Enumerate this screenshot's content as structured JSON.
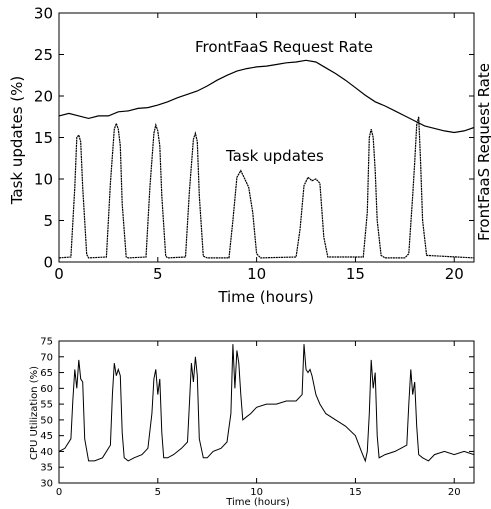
{
  "chart_data": [
    {
      "type": "line",
      "title": "",
      "xlabel": "Time (hours)",
      "ylabel": "Task updates (%)",
      "ylabel_right": "FrontFaaS Request Rate",
      "xlim": [
        0,
        21
      ],
      "ylim": [
        0,
        30
      ],
      "xticks": [
        0,
        5,
        10,
        15,
        20
      ],
      "yticks": [
        0,
        5,
        10,
        15,
        20,
        25,
        30
      ],
      "grid": false,
      "annotations": [
        "FrontFaaS Request Rate",
        "Task updates"
      ],
      "series": [
        {
          "key": "request_rate",
          "x": [
            0,
            0.5,
            1,
            1.5,
            2,
            2.5,
            3,
            3.5,
            4,
            4.5,
            5,
            5.5,
            6,
            6.5,
            7,
            7.5,
            8,
            8.5,
            9,
            9.5,
            10,
            10.5,
            11,
            11.5,
            12,
            12.5,
            13,
            13.5,
            14,
            14.5,
            15,
            15.5,
            16,
            16.5,
            17,
            17.5,
            18,
            18.5,
            19,
            19.5,
            20,
            20.5,
            21
          ],
          "values": [
            17.6,
            17.9,
            17.6,
            17.3,
            17.6,
            17.6,
            18.1,
            18.2,
            18.5,
            18.6,
            18.9,
            19.3,
            19.8,
            20.2,
            20.6,
            21.2,
            21.9,
            22.5,
            23.0,
            23.3,
            23.5,
            23.6,
            23.8,
            24.0,
            24.1,
            24.3,
            24.1,
            23.4,
            22.7,
            21.9,
            21.0,
            20.1,
            19.3,
            18.8,
            18.2,
            17.6,
            17.0,
            16.4,
            16.1,
            15.8,
            15.6,
            15.8,
            16.2
          ]
        },
        {
          "key": "task_updates",
          "x": [
            0,
            0.6,
            0.8,
            0.9,
            1.0,
            1.1,
            1.2,
            1.4,
            1.5,
            2.4,
            2.6,
            2.8,
            2.9,
            3.0,
            3.1,
            3.2,
            3.4,
            3.5,
            4.4,
            4.6,
            4.8,
            4.9,
            5.0,
            5.1,
            5.2,
            5.4,
            5.5,
            6.4,
            6.6,
            6.8,
            6.9,
            7.0,
            7.1,
            7.3,
            7.5,
            8.6,
            8.8,
            9.0,
            9.2,
            9.4,
            9.6,
            9.8,
            10.0,
            10.2,
            12.0,
            12.2,
            12.4,
            12.6,
            12.8,
            13.0,
            13.2,
            13.4,
            13.6,
            15.4,
            15.6,
            15.7,
            15.8,
            15.9,
            16.0,
            16.1,
            16.3,
            16.5,
            17.5,
            17.7,
            17.9,
            18.0,
            18.1,
            18.2,
            18.3,
            18.4,
            18.6,
            21.0
          ],
          "values": [
            0.5,
            0.6,
            9.0,
            15.0,
            15.3,
            14.5,
            9.0,
            0.9,
            0.5,
            0.6,
            9.5,
            16.0,
            16.7,
            16.0,
            14.0,
            7.0,
            0.6,
            0.5,
            0.6,
            9.0,
            15.5,
            16.5,
            15.8,
            14.0,
            8.0,
            0.7,
            0.5,
            0.6,
            8.5,
            14.8,
            15.5,
            14.5,
            8.0,
            0.7,
            0.5,
            0.5,
            5.0,
            10.2,
            11.0,
            10.0,
            9.0,
            6.0,
            1.0,
            0.5,
            0.6,
            4.0,
            9.2,
            10.2,
            9.8,
            10.0,
            9.5,
            3.0,
            0.6,
            0.6,
            6.0,
            15.0,
            16.0,
            15.0,
            11.0,
            5.0,
            0.8,
            0.5,
            0.5,
            1.0,
            8.0,
            12.0,
            16.5,
            17.5,
            12.0,
            5.0,
            0.8,
            0.5
          ]
        }
      ]
    },
    {
      "type": "line",
      "title": "",
      "xlabel": "Time (hours)",
      "ylabel": "CPU Utilization (%)",
      "xlim": [
        0,
        21
      ],
      "ylim": [
        30,
        75
      ],
      "xticks": [
        0,
        5,
        10,
        15,
        20
      ],
      "yticks": [
        30,
        35,
        40,
        45,
        50,
        55,
        60,
        65,
        70,
        75
      ],
      "grid": false,
      "series": [
        {
          "key": "cpu",
          "x": [
            0,
            0.3,
            0.6,
            0.7,
            0.8,
            0.9,
            1.0,
            1.1,
            1.2,
            1.3,
            1.5,
            1.8,
            2.2,
            2.6,
            2.7,
            2.8,
            2.9,
            3.0,
            3.1,
            3.2,
            3.3,
            3.5,
            3.8,
            4.2,
            4.5,
            4.7,
            4.8,
            4.9,
            5.0,
            5.1,
            5.2,
            5.3,
            5.5,
            5.8,
            6.2,
            6.5,
            6.6,
            6.7,
            6.8,
            6.9,
            7.0,
            7.1,
            7.3,
            7.5,
            7.8,
            8.2,
            8.5,
            8.7,
            8.8,
            8.9,
            9.0,
            9.1,
            9.2,
            9.3,
            9.5,
            9.7,
            10.0,
            10.5,
            11.0,
            11.5,
            12.0,
            12.3,
            12.4,
            12.5,
            12.6,
            12.7,
            12.8,
            13.0,
            13.2,
            13.5,
            14.0,
            14.5,
            15.0,
            15.3,
            15.5,
            15.6,
            15.7,
            15.8,
            15.9,
            16.0,
            16.1,
            16.2,
            16.5,
            17.0,
            17.3,
            17.6,
            17.7,
            17.8,
            17.9,
            18.0,
            18.1,
            18.2,
            18.4,
            18.7,
            19.0,
            19.5,
            20.0,
            20.5,
            21.0
          ],
          "values": [
            40,
            41,
            44,
            56,
            66,
            60,
            69,
            63,
            62,
            44,
            37,
            37,
            38,
            42,
            58,
            68,
            64,
            66,
            64,
            46,
            38,
            37,
            38,
            39,
            41,
            52,
            63,
            66,
            58,
            63,
            46,
            38,
            38,
            39,
            41,
            43,
            55,
            68,
            62,
            70,
            64,
            44,
            38,
            38,
            40,
            41,
            43,
            52,
            74,
            60,
            72,
            68,
            58,
            50,
            51,
            52,
            54,
            55,
            55,
            56,
            56,
            58,
            74,
            66,
            65,
            66,
            64,
            58,
            55,
            52,
            50,
            48,
            45,
            40,
            37,
            40,
            52,
            69,
            60,
            65,
            45,
            38,
            39,
            40,
            41,
            42,
            55,
            66,
            58,
            62,
            48,
            39,
            38,
            37,
            39,
            40,
            39,
            40,
            39
          ]
        }
      ]
    }
  ]
}
